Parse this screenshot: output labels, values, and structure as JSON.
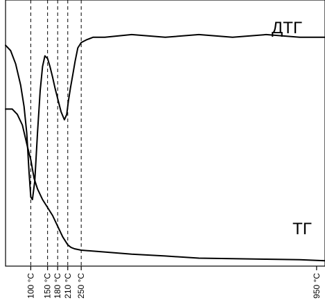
{
  "chart_data": {
    "type": "line",
    "xlabel": "",
    "ylabel": "",
    "x_markers": [
      {
        "value": 100,
        "label": "100 °C"
      },
      {
        "value": 150,
        "label": "150 °C"
      },
      {
        "value": 180,
        "label": "180 °C"
      },
      {
        "value": 210,
        "label": "210 °C"
      },
      {
        "value": 250,
        "label": "250 °C"
      },
      {
        "value": 950,
        "label": "950 °C"
      }
    ],
    "series": [
      {
        "name": "ДТГ",
        "x": [
          25,
          40,
          55,
          70,
          80,
          88,
          95,
          100,
          105,
          112,
          120,
          128,
          135,
          142,
          150,
          157,
          165,
          172,
          180,
          190,
          200,
          207,
          212,
          218,
          225,
          232,
          240,
          250,
          265,
          285,
          320,
          400,
          500,
          600,
          700,
          800,
          900,
          975
        ],
        "y": [
          0.83,
          0.81,
          0.76,
          0.68,
          0.6,
          0.5,
          0.35,
          0.26,
          0.25,
          0.32,
          0.5,
          0.66,
          0.75,
          0.79,
          0.78,
          0.75,
          0.71,
          0.67,
          0.63,
          0.58,
          0.55,
          0.57,
          0.62,
          0.67,
          0.72,
          0.77,
          0.82,
          0.84,
          0.85,
          0.86,
          0.86,
          0.87,
          0.86,
          0.87,
          0.86,
          0.87,
          0.86,
          0.86
        ]
      },
      {
        "name": "ТГ",
        "x": [
          25,
          45,
          60,
          75,
          90,
          100,
          110,
          120,
          135,
          150,
          165,
          180,
          195,
          210,
          220,
          230,
          250,
          300,
          400,
          500,
          600,
          700,
          800,
          900,
          975
        ],
        "y": [
          0.59,
          0.59,
          0.57,
          0.53,
          0.45,
          0.4,
          0.33,
          0.29,
          0.25,
          0.22,
          0.19,
          0.15,
          0.11,
          0.08,
          0.07,
          0.065,
          0.06,
          0.055,
          0.045,
          0.038,
          0.03,
          0.028,
          0.026,
          0.024,
          0.02
        ]
      }
    ],
    "xlim": [
      25,
      975
    ],
    "ylim": [
      0,
      1
    ],
    "grid": false,
    "legend": "none"
  }
}
